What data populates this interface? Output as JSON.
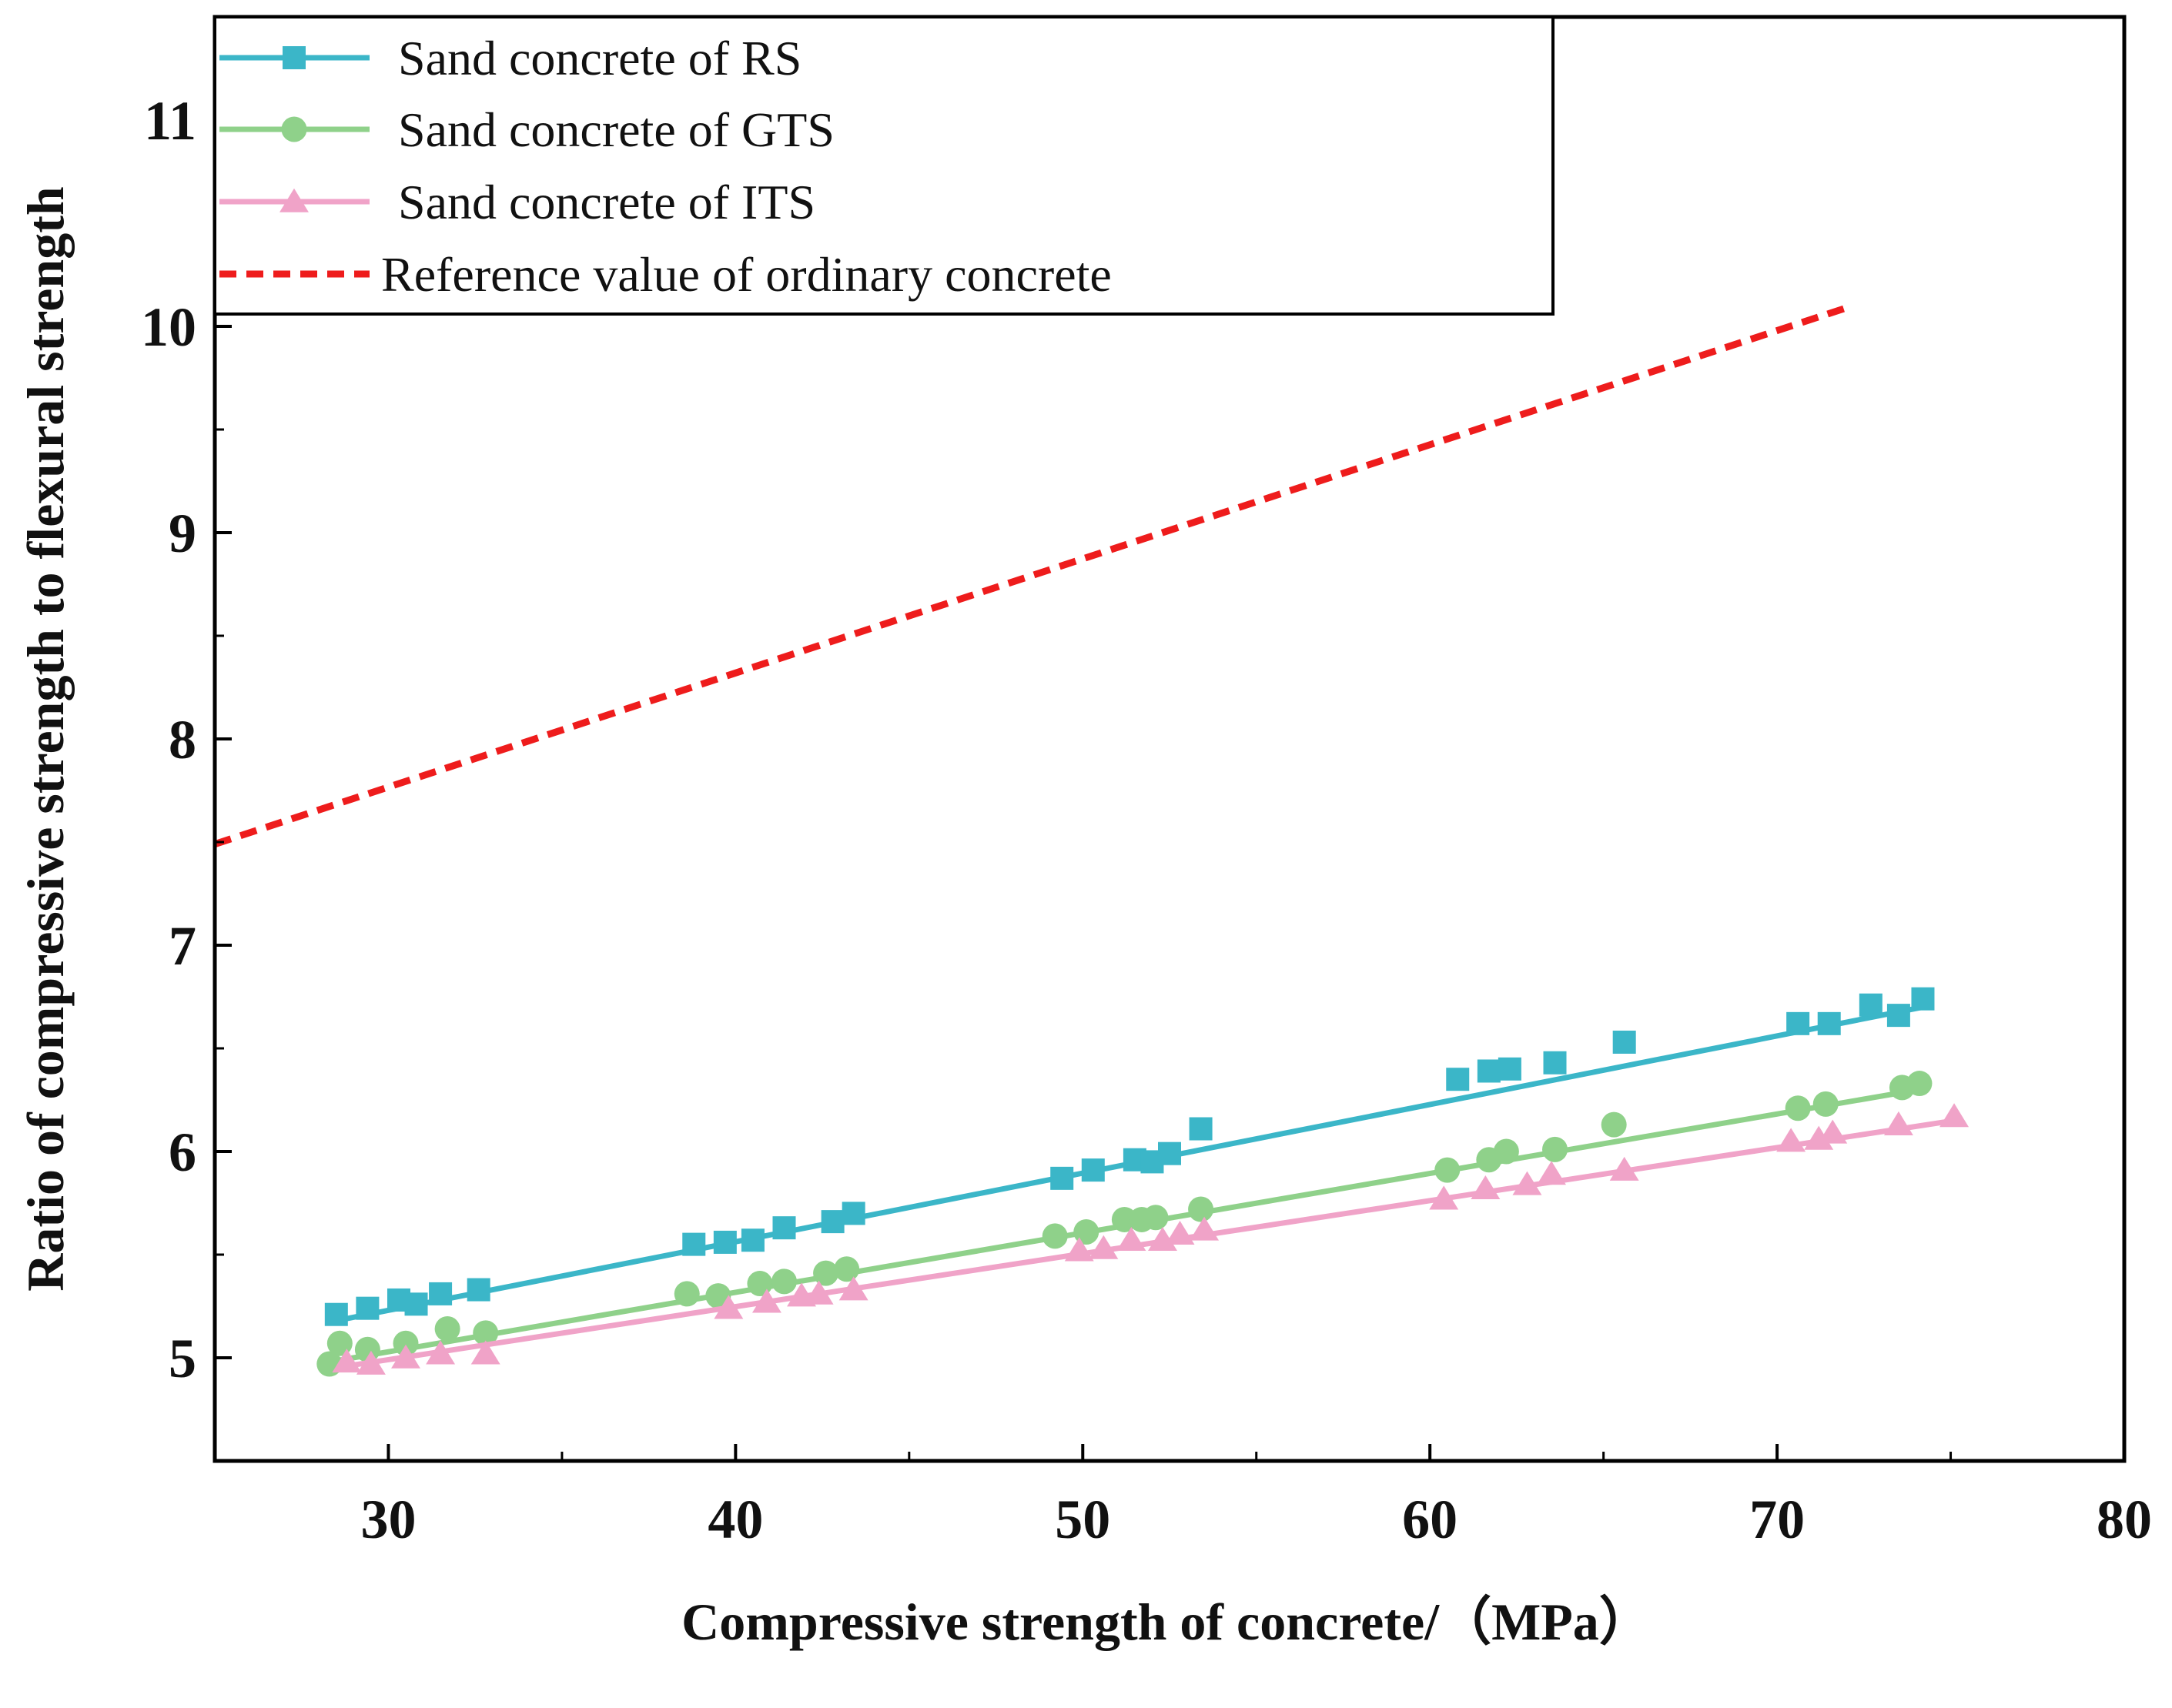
{
  "chart_data": {
    "type": "scatter",
    "title": "",
    "xlabel": "Compressive strength of concrete/（MPa）",
    "ylabel": "Ratio of compressive strength to flexural strength",
    "xlim": [
      25,
      80
    ],
    "ylim": [
      4.5,
      11.5
    ],
    "x_ticks": [
      30,
      40,
      50,
      60,
      70,
      80
    ],
    "x_tick_labels": [
      "30",
      "40",
      "50",
      "60",
      "70",
      "80"
    ],
    "y_ticks": [
      5,
      6,
      7,
      8,
      9,
      10,
      11
    ],
    "y_tick_labels": [
      "5",
      "6",
      "7",
      "8",
      "9",
      "10",
      "11"
    ],
    "grid": false,
    "legend_position": "top-left",
    "series": [
      {
        "name": "Sand concrete of RS",
        "color": "#3bb6c8",
        "marker": "square",
        "points": [
          [
            28.5,
            5.21
          ],
          [
            29.4,
            5.24
          ],
          [
            30.3,
            5.28
          ],
          [
            30.8,
            5.26
          ],
          [
            31.5,
            5.31
          ],
          [
            32.6,
            5.33
          ],
          [
            38.8,
            5.55
          ],
          [
            39.7,
            5.56
          ],
          [
            40.5,
            5.57
          ],
          [
            41.4,
            5.63
          ],
          [
            42.8,
            5.66
          ],
          [
            43.4,
            5.7
          ],
          [
            49.4,
            5.87
          ],
          [
            50.3,
            5.91
          ],
          [
            51.5,
            5.96
          ],
          [
            52.0,
            5.95
          ],
          [
            52.5,
            5.99
          ],
          [
            53.4,
            6.11
          ],
          [
            60.8,
            6.35
          ],
          [
            61.7,
            6.39
          ],
          [
            62.3,
            6.4
          ],
          [
            63.6,
            6.43
          ],
          [
            65.6,
            6.53
          ],
          [
            70.6,
            6.62
          ],
          [
            71.5,
            6.62
          ],
          [
            72.7,
            6.71
          ],
          [
            73.5,
            6.66
          ],
          [
            74.2,
            6.74
          ]
        ],
        "fit": [
          [
            28.5,
            5.18
          ],
          [
            74.2,
            6.7
          ]
        ]
      },
      {
        "name": "Sand concrete of GTS",
        "color": "#8fd18a",
        "marker": "circle",
        "points": [
          [
            28.3,
            4.97
          ],
          [
            28.6,
            5.07
          ],
          [
            29.4,
            5.04
          ],
          [
            30.5,
            5.07
          ],
          [
            31.7,
            5.14
          ],
          [
            32.8,
            5.12
          ],
          [
            38.6,
            5.31
          ],
          [
            39.5,
            5.3
          ],
          [
            40.7,
            5.36
          ],
          [
            41.4,
            5.37
          ],
          [
            42.6,
            5.41
          ],
          [
            43.2,
            5.43
          ],
          [
            49.2,
            5.59
          ],
          [
            50.1,
            5.61
          ],
          [
            51.2,
            5.67
          ],
          [
            51.7,
            5.67
          ],
          [
            52.1,
            5.68
          ],
          [
            53.4,
            5.72
          ],
          [
            60.5,
            5.91
          ],
          [
            61.7,
            5.96
          ],
          [
            62.2,
            6.0
          ],
          [
            63.6,
            6.01
          ],
          [
            65.3,
            6.13
          ],
          [
            70.6,
            6.21
          ],
          [
            71.4,
            6.23
          ],
          [
            73.6,
            6.31
          ],
          [
            74.1,
            6.33
          ]
        ],
        "fit": [
          [
            28.3,
            4.98
          ],
          [
            74.1,
            6.3
          ]
        ]
      },
      {
        "name": "Sand concrete of ITS",
        "color": "#f0a3c8",
        "marker": "triangle",
        "points": [
          [
            28.8,
            4.98
          ],
          [
            29.5,
            4.97
          ],
          [
            30.5,
            5.0
          ],
          [
            31.5,
            5.02
          ],
          [
            32.8,
            5.02
          ],
          [
            39.8,
            5.24
          ],
          [
            40.9,
            5.27
          ],
          [
            41.9,
            5.3
          ],
          [
            42.4,
            5.31
          ],
          [
            43.4,
            5.33
          ],
          [
            49.9,
            5.52
          ],
          [
            50.6,
            5.53
          ],
          [
            51.4,
            5.57
          ],
          [
            52.3,
            5.57
          ],
          [
            52.8,
            5.6
          ],
          [
            53.5,
            5.62
          ],
          [
            60.4,
            5.77
          ],
          [
            61.6,
            5.82
          ],
          [
            62.8,
            5.84
          ],
          [
            63.5,
            5.89
          ],
          [
            65.6,
            5.91
          ],
          [
            70.4,
            6.05
          ],
          [
            71.2,
            6.06
          ],
          [
            71.6,
            6.09
          ],
          [
            73.5,
            6.13
          ],
          [
            75.1,
            6.17
          ]
        ],
        "fit": [
          [
            28.8,
            4.96
          ],
          [
            75.1,
            6.15
          ]
        ]
      },
      {
        "name": "Reference value of ordinary concrete",
        "color": "#ee1c1c",
        "style": "dashed",
        "points": [
          [
            25,
            7.49
          ],
          [
            72,
            10.09
          ]
        ]
      }
    ]
  }
}
